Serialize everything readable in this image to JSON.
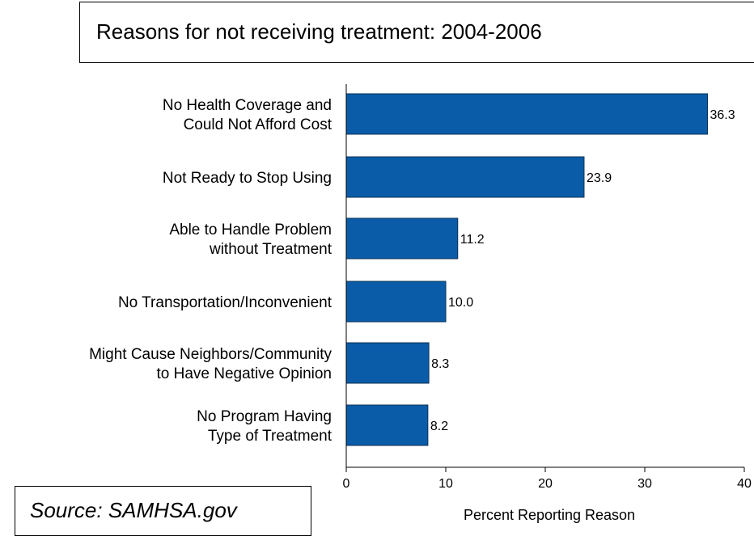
{
  "chart_data": {
    "type": "bar",
    "orientation": "horizontal",
    "title": "Reasons for not receiving treatment: 2004-2006",
    "xlabel": "Percent Reporting Reason",
    "ylabel": "",
    "xlim": [
      0,
      40
    ],
    "ticks": [
      0,
      10,
      20,
      30,
      40
    ],
    "grid": false,
    "bar_color": "#0a5ca8",
    "categories": [
      [
        "No Health Coverage and",
        "Could Not Afford Cost"
      ],
      [
        "Not Ready to Stop Using"
      ],
      [
        "Able to Handle Problem",
        "without Treatment"
      ],
      [
        "No Transportation/Inconvenient"
      ],
      [
        "Might Cause Neighbors/Community",
        "to Have Negative Opinion"
      ],
      [
        "No Program Having",
        "Type of Treatment"
      ]
    ],
    "values": [
      36.3,
      23.9,
      11.2,
      10.0,
      8.3,
      8.2
    ],
    "value_labels": [
      "36.3",
      "23.9",
      "11.2",
      "10.0",
      "8.3",
      "8.2"
    ]
  },
  "source": "Source: SAMHSA.gov"
}
